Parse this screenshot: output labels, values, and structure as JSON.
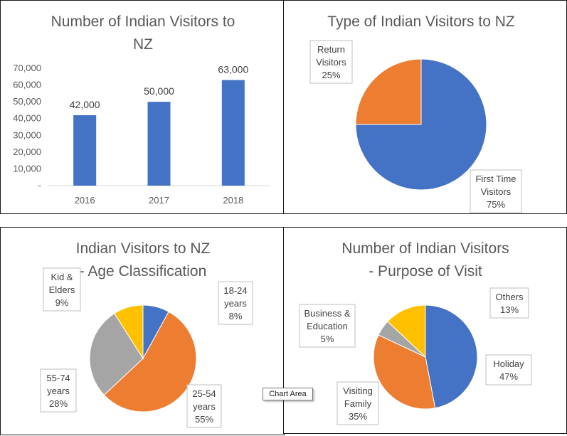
{
  "colors": {
    "blue": "#4472C4",
    "orange": "#ED7D31",
    "gray": "#A5A5A5",
    "gold": "#FFC000"
  },
  "tooltip": "Chart Area",
  "chart_data": [
    {
      "type": "bar",
      "title": "Number of Indian Visitors to NZ",
      "categories": [
        "2016",
        "2017",
        "2018"
      ],
      "values": [
        42000,
        50000,
        63000
      ],
      "data_labels": [
        "42,000",
        "50,000",
        "63,000"
      ],
      "yticks": [
        "-",
        "10,000",
        "20,000",
        "30,000",
        "40,000",
        "50,000",
        "60,000",
        "70,000"
      ],
      "ylim": [
        0,
        70000
      ],
      "grid": false,
      "color": "#4472C4"
    },
    {
      "type": "pie",
      "title": "Type of Indian Visitors to NZ",
      "slices": [
        {
          "label": "First Time Visitors",
          "value": 75,
          "pct": "75%",
          "color": "#4472C4"
        },
        {
          "label": "Return Visitors",
          "value": 25,
          "pct": "25%",
          "color": "#ED7D31"
        }
      ]
    },
    {
      "type": "pie",
      "title": "Indian Visitors to NZ - Age Classification",
      "slices": [
        {
          "label": "18-24 years",
          "value": 8,
          "pct": "8%",
          "color": "#4472C4"
        },
        {
          "label": "25-54 years",
          "value": 55,
          "pct": "55%",
          "color": "#ED7D31"
        },
        {
          "label": "55-74 years",
          "value": 28,
          "pct": "28%",
          "color": "#A5A5A5"
        },
        {
          "label": "Kid & Elders",
          "value": 9,
          "pct": "9%",
          "color": "#FFC000"
        }
      ]
    },
    {
      "type": "pie",
      "title": "Number of Indian Visitors - Purpose of Visit",
      "slices": [
        {
          "label": "Holiday",
          "value": 47,
          "pct": "47%",
          "color": "#4472C4"
        },
        {
          "label": "Visiting Family",
          "value": 35,
          "pct": "35%",
          "color": "#ED7D31"
        },
        {
          "label": "Business & Education",
          "value": 5,
          "pct": "5%",
          "color": "#A5A5A5"
        },
        {
          "label": "Others",
          "value": 13,
          "pct": "13%",
          "color": "#FFC000"
        }
      ]
    }
  ]
}
